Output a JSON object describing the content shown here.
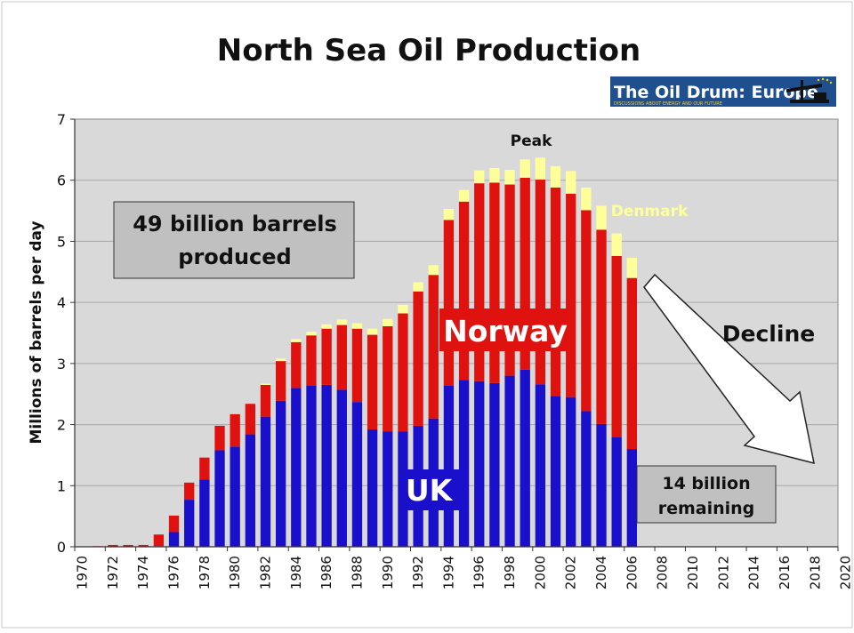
{
  "chart_data": {
    "type": "bar",
    "stacked": true,
    "title": "North Sea Oil Production",
    "xlabel": "",
    "ylabel": "Millions of barrels per day",
    "xlim": [
      1970,
      2020
    ],
    "ylim": [
      0,
      7
    ],
    "grid": true,
    "yticks": [
      0,
      1,
      2,
      3,
      4,
      5,
      6,
      7
    ],
    "xticks": [
      "1970",
      "1972",
      "1974",
      "1976",
      "1978",
      "1980",
      "1982",
      "1984",
      "1986",
      "1988",
      "1990",
      "1992",
      "1994",
      "1996",
      "1998",
      "2000",
      "2002",
      "2004",
      "2006",
      "2008",
      "2010",
      "2012",
      "2014",
      "2016",
      "2018",
      "2020"
    ],
    "categories": [
      "1971",
      "1972",
      "1973",
      "1974",
      "1975",
      "1976",
      "1977",
      "1978",
      "1979",
      "1980",
      "1981",
      "1982",
      "1983",
      "1984",
      "1985",
      "1986",
      "1987",
      "1988",
      "1989",
      "1990",
      "1991",
      "1992",
      "1993",
      "1994",
      "1995",
      "1996",
      "1997",
      "1998",
      "1999",
      "2000",
      "2001",
      "2002",
      "2003",
      "2004",
      "2005",
      "2006"
    ],
    "series": [
      {
        "name": "UK",
        "color": "#1a10cc",
        "values": [
          0,
          0,
          0,
          0,
          0.01,
          0.24,
          0.77,
          1.1,
          1.58,
          1.64,
          1.84,
          2.13,
          2.39,
          2.6,
          2.64,
          2.65,
          2.57,
          2.37,
          1.92,
          1.89,
          1.89,
          1.98,
          2.1,
          2.64,
          2.73,
          2.71,
          2.68,
          2.8,
          2.9,
          2.66,
          2.47,
          2.45,
          2.22,
          2.01,
          1.79,
          1.6
        ]
      },
      {
        "name": "Norway",
        "color": "#e0120f",
        "values": [
          0.01,
          0.03,
          0.03,
          0.03,
          0.19,
          0.27,
          0.28,
          0.36,
          0.4,
          0.53,
          0.5,
          0.52,
          0.65,
          0.75,
          0.82,
          0.92,
          1.06,
          1.2,
          1.55,
          1.72,
          1.93,
          2.2,
          2.35,
          2.71,
          2.92,
          3.24,
          3.28,
          3.13,
          3.14,
          3.35,
          3.41,
          3.33,
          3.29,
          3.18,
          2.97,
          2.8
        ]
      },
      {
        "name": "Denmark",
        "color": "#ffff99",
        "values": [
          0,
          0,
          0,
          0,
          0,
          0,
          0,
          0,
          0,
          0,
          0,
          0.02,
          0.04,
          0.05,
          0.06,
          0.07,
          0.09,
          0.09,
          0.1,
          0.12,
          0.14,
          0.15,
          0.16,
          0.18,
          0.19,
          0.21,
          0.24,
          0.24,
          0.3,
          0.36,
          0.35,
          0.37,
          0.37,
          0.39,
          0.37,
          0.33
        ]
      }
    ],
    "series_labels": {
      "uk": "UK",
      "norway": "Norway",
      "denmark": "Denmark"
    },
    "annotations": {
      "peak": "Peak",
      "decline": "Decline",
      "produced_line1": "49 billion barrels",
      "produced_line2": "produced",
      "remaining_line1": "14 billion",
      "remaining_line2": "remaining"
    },
    "logo": {
      "text": "The Oil Drum: Europe",
      "subtext": "DISCUSSIONS ABOUT ENERGY AND OUR FUTURE"
    },
    "colors": {
      "plot_bg": "#d9d9d9",
      "box_bg": "#c0c0c0",
      "grid": "#a8a8a8",
      "logo_bg": "#1f4f8f"
    }
  }
}
